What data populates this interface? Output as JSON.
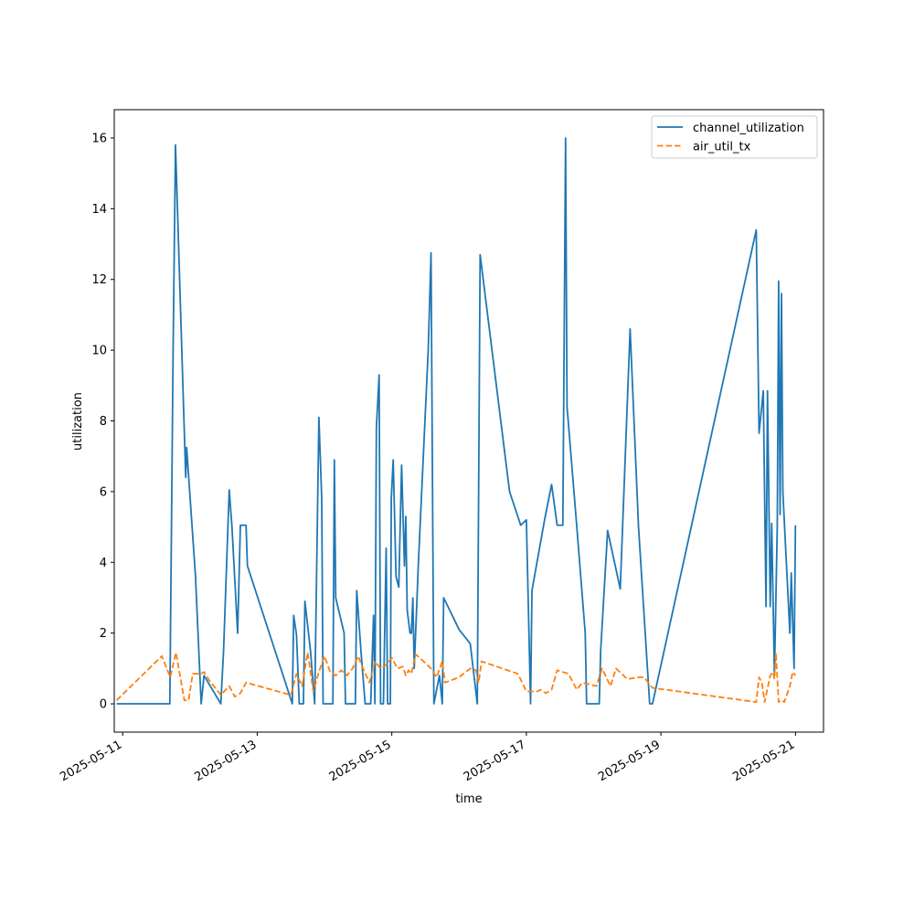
{
  "chart_data": {
    "type": "line",
    "title": "",
    "xlabel": "time",
    "ylabel": "utilization",
    "x_range": [
      "2025-05-10T21:00",
      "2025-05-21T10:00"
    ],
    "ylim": [
      -0.8,
      16.8
    ],
    "grid": false,
    "legend_position": "top-right",
    "x_ticks": [
      {
        "date": "2025-05-11",
        "label": "2025-05-11"
      },
      {
        "date": "2025-05-13",
        "label": "2025-05-13"
      },
      {
        "date": "2025-05-15",
        "label": "2025-05-15"
      },
      {
        "date": "2025-05-17",
        "label": "2025-05-17"
      },
      {
        "date": "2025-05-19",
        "label": "2025-05-19"
      },
      {
        "date": "2025-05-21",
        "label": "2025-05-21"
      }
    ],
    "y_ticks": [
      {
        "value": 0,
        "label": "0"
      },
      {
        "value": 2,
        "label": "2"
      },
      {
        "value": 4,
        "label": "4"
      },
      {
        "value": 6,
        "label": "6"
      },
      {
        "value": 8,
        "label": "8"
      },
      {
        "value": 10,
        "label": "10"
      },
      {
        "value": 12,
        "label": "12"
      },
      {
        "value": 14,
        "label": "14"
      },
      {
        "value": 16,
        "label": "16"
      }
    ],
    "series": [
      {
        "name": "channel_utilization",
        "color": "#1f77b4",
        "style": "solid",
        "points": [
          [
            "2025-05-10T21:50",
            0.0
          ],
          [
            "2025-05-11T16:50",
            0.0
          ],
          [
            "2025-05-11T18:00",
            10.0
          ],
          [
            "2025-05-11T18:50",
            15.8
          ],
          [
            "2025-05-11T22:30",
            6.4
          ],
          [
            "2025-05-11T22:50",
            7.25
          ],
          [
            "2025-05-12T02:00",
            3.6
          ],
          [
            "2025-05-12T04:00",
            0.0
          ],
          [
            "2025-05-12T05:00",
            0.8
          ],
          [
            "2025-05-12T11:00",
            0.0
          ],
          [
            "2025-05-12T12:00",
            1.5
          ],
          [
            "2025-05-12T14:00",
            6.05
          ],
          [
            "2025-05-12T15:00",
            5.0
          ],
          [
            "2025-05-12T17:00",
            2.0
          ],
          [
            "2025-05-12T18:00",
            5.05
          ],
          [
            "2025-05-12T20:00",
            5.05
          ],
          [
            "2025-05-12T20:30",
            3.9
          ],
          [
            "2025-05-13T12:30",
            0.0
          ],
          [
            "2025-05-13T13:00",
            2.5
          ],
          [
            "2025-05-13T14:00",
            1.95
          ],
          [
            "2025-05-13T15:00",
            0.0
          ],
          [
            "2025-05-13T16:30",
            0.0
          ],
          [
            "2025-05-13T17:00",
            2.9
          ],
          [
            "2025-05-13T19:00",
            1.5
          ],
          [
            "2025-05-13T20:30",
            0.0
          ],
          [
            "2025-05-13T22:00",
            8.1
          ],
          [
            "2025-05-13T23:00",
            5.8
          ],
          [
            "2025-05-13T23:30",
            0.0
          ],
          [
            "2025-05-14T03:00",
            0.0
          ],
          [
            "2025-05-14T03:30",
            6.9
          ],
          [
            "2025-05-14T04:00",
            3.0
          ],
          [
            "2025-05-14T07:00",
            2.0
          ],
          [
            "2025-05-14T07:30",
            0.0
          ],
          [
            "2025-05-14T11:00",
            0.0
          ],
          [
            "2025-05-14T11:30",
            3.2
          ],
          [
            "2025-05-14T13:00",
            1.5
          ],
          [
            "2025-05-14T14:30",
            0.0
          ],
          [
            "2025-05-14T16:30",
            0.0
          ],
          [
            "2025-05-14T17:30",
            2.5
          ],
          [
            "2025-05-14T18:00",
            0.0
          ],
          [
            "2025-05-14T18:30",
            7.8
          ],
          [
            "2025-05-14T19:30",
            9.3
          ],
          [
            "2025-05-14T20:00",
            0.0
          ],
          [
            "2025-05-14T21:00",
            0.0
          ],
          [
            "2025-05-14T22:00",
            4.4
          ],
          [
            "2025-05-14T22:30",
            0.0
          ],
          [
            "2025-05-14T23:30",
            0.0
          ],
          [
            "2025-05-14T23:50",
            5.8
          ],
          [
            "2025-05-15T00:30",
            6.9
          ],
          [
            "2025-05-15T01:30",
            3.6
          ],
          [
            "2025-05-15T02:30",
            3.3
          ],
          [
            "2025-05-15T03:30",
            6.75
          ],
          [
            "2025-05-15T04:30",
            3.9
          ],
          [
            "2025-05-15T05:00",
            5.3
          ],
          [
            "2025-05-15T05:30",
            2.65
          ],
          [
            "2025-05-15T06:30",
            2.0
          ],
          [
            "2025-05-15T07:00",
            2.0
          ],
          [
            "2025-05-15T07:30",
            3.0
          ],
          [
            "2025-05-15T08:00",
            1.0
          ],
          [
            "2025-05-15T09:30",
            4.0
          ],
          [
            "2025-05-15T13:00",
            10.0
          ],
          [
            "2025-05-15T14:00",
            12.75
          ],
          [
            "2025-05-15T15:00",
            0.0
          ],
          [
            "2025-05-15T17:00",
            0.8
          ],
          [
            "2025-05-15T18:00",
            0.0
          ],
          [
            "2025-05-15T18:30",
            3.0
          ],
          [
            "2025-05-16T00:00",
            2.1
          ],
          [
            "2025-05-16T04:00",
            1.7
          ],
          [
            "2025-05-16T06:30",
            0.0
          ],
          [
            "2025-05-16T07:30",
            12.7
          ],
          [
            "2025-05-16T18:00",
            6.0
          ],
          [
            "2025-05-16T22:00",
            5.05
          ],
          [
            "2025-05-17T00:00",
            5.2
          ],
          [
            "2025-05-17T01:30",
            0.0
          ],
          [
            "2025-05-17T02:00",
            3.2
          ],
          [
            "2025-05-17T06:30",
            5.2
          ],
          [
            "2025-05-17T09:00",
            6.2
          ],
          [
            "2025-05-17T11:00",
            5.05
          ],
          [
            "2025-05-17T13:00",
            5.05
          ],
          [
            "2025-05-17T14:00",
            16.0
          ],
          [
            "2025-05-17T14:30",
            8.4
          ],
          [
            "2025-05-17T18:00",
            5.0
          ],
          [
            "2025-05-17T21:00",
            2.0
          ],
          [
            "2025-05-17T21:30",
            0.0
          ],
          [
            "2025-05-18T02:00",
            0.0
          ],
          [
            "2025-05-18T02:30",
            1.5
          ],
          [
            "2025-05-18T05:00",
            4.9
          ],
          [
            "2025-05-18T09:30",
            3.25
          ],
          [
            "2025-05-18T13:00",
            10.6
          ],
          [
            "2025-05-18T16:00",
            5.0
          ],
          [
            "2025-05-18T20:00",
            0.0
          ],
          [
            "2025-05-18T21:00",
            0.0
          ],
          [
            "2025-05-20T10:00",
            13.4
          ],
          [
            "2025-05-20T11:00",
            7.65
          ],
          [
            "2025-05-20T12:30",
            8.85
          ],
          [
            "2025-05-20T13:30",
            2.75
          ],
          [
            "2025-05-20T14:00",
            8.85
          ],
          [
            "2025-05-20T15:00",
            2.75
          ],
          [
            "2025-05-20T15:30",
            5.1
          ],
          [
            "2025-05-20T16:30",
            0.8
          ],
          [
            "2025-05-20T17:30",
            5.0
          ],
          [
            "2025-05-20T18:00",
            11.95
          ],
          [
            "2025-05-20T18:30",
            5.35
          ],
          [
            "2025-05-20T19:00",
            11.6
          ],
          [
            "2025-05-20T19:30",
            6.0
          ],
          [
            "2025-05-20T22:00",
            2.0
          ],
          [
            "2025-05-20T22:30",
            3.7
          ],
          [
            "2025-05-20T23:30",
            1.0
          ],
          [
            "2025-05-21T00:00",
            5.05
          ]
        ]
      },
      {
        "name": "air_util_tx",
        "color": "#ff7f0e",
        "style": "dashed",
        "points": [
          [
            "2025-05-10T21:50",
            0.1
          ],
          [
            "2025-05-11T14:00",
            1.35
          ],
          [
            "2025-05-11T17:00",
            0.75
          ],
          [
            "2025-05-11T19:00",
            1.45
          ],
          [
            "2025-05-11T22:00",
            0.1
          ],
          [
            "2025-05-11T23:30",
            0.1
          ],
          [
            "2025-05-12T01:00",
            0.85
          ],
          [
            "2025-05-12T04:00",
            0.85
          ],
          [
            "2025-05-12T05:00",
            0.9
          ],
          [
            "2025-05-12T07:00",
            0.65
          ],
          [
            "2025-05-12T10:00",
            0.35
          ],
          [
            "2025-05-12T11:00",
            0.25
          ],
          [
            "2025-05-12T14:00",
            0.5
          ],
          [
            "2025-05-12T16:00",
            0.2
          ],
          [
            "2025-05-12T18:00",
            0.3
          ],
          [
            "2025-05-12T20:00",
            0.6
          ],
          [
            "2025-05-13T12:00",
            0.25
          ],
          [
            "2025-05-13T14:00",
            0.85
          ],
          [
            "2025-05-13T16:00",
            0.5
          ],
          [
            "2025-05-13T18:00",
            1.45
          ],
          [
            "2025-05-13T20:00",
            0.35
          ],
          [
            "2025-05-13T22:00",
            0.9
          ],
          [
            "2025-05-14T00:00",
            1.35
          ],
          [
            "2025-05-14T02:00",
            0.9
          ],
          [
            "2025-05-14T04:00",
            0.8
          ],
          [
            "2025-05-14T06:00",
            0.95
          ],
          [
            "2025-05-14T08:00",
            0.8
          ],
          [
            "2025-05-14T10:00",
            1.0
          ],
          [
            "2025-05-14T12:00",
            1.35
          ],
          [
            "2025-05-14T14:00",
            0.95
          ],
          [
            "2025-05-14T16:00",
            0.6
          ],
          [
            "2025-05-14T18:00",
            1.2
          ],
          [
            "2025-05-14T20:00",
            1.0
          ],
          [
            "2025-05-14T22:00",
            1.1
          ],
          [
            "2025-05-15T00:00",
            1.3
          ],
          [
            "2025-05-15T02:00",
            1.0
          ],
          [
            "2025-05-15T04:00",
            1.05
          ],
          [
            "2025-05-15T05:00",
            0.8
          ],
          [
            "2025-05-15T06:00",
            0.95
          ],
          [
            "2025-05-15T07:00",
            0.85
          ],
          [
            "2025-05-15T08:30",
            1.4
          ],
          [
            "2025-05-15T10:00",
            1.3
          ],
          [
            "2025-05-15T14:00",
            1.0
          ],
          [
            "2025-05-15T16:00",
            0.75
          ],
          [
            "2025-05-15T18:00",
            1.2
          ],
          [
            "2025-05-15T19:00",
            0.6
          ],
          [
            "2025-05-16T00:00",
            0.75
          ],
          [
            "2025-05-16T04:00",
            1.0
          ],
          [
            "2025-05-16T06:00",
            0.95
          ],
          [
            "2025-05-16T07:00",
            0.6
          ],
          [
            "2025-05-16T08:00",
            1.2
          ],
          [
            "2025-05-16T21:00",
            0.85
          ],
          [
            "2025-05-17T00:00",
            0.35
          ],
          [
            "2025-05-17T04:00",
            0.35
          ],
          [
            "2025-05-17T05:00",
            0.4
          ],
          [
            "2025-05-17T07:00",
            0.3
          ],
          [
            "2025-05-17T09:00",
            0.4
          ],
          [
            "2025-05-17T11:00",
            0.95
          ],
          [
            "2025-05-17T15:00",
            0.85
          ],
          [
            "2025-05-17T18:00",
            0.4
          ],
          [
            "2025-05-17T20:00",
            0.6
          ],
          [
            "2025-05-18T01:00",
            0.5
          ],
          [
            "2025-05-18T03:00",
            1.0
          ],
          [
            "2025-05-18T06:00",
            0.5
          ],
          [
            "2025-05-18T08:00",
            1.0
          ],
          [
            "2025-05-18T12:00",
            0.7
          ],
          [
            "2025-05-18T16:00",
            0.75
          ],
          [
            "2025-05-18T18:00",
            0.75
          ],
          [
            "2025-05-18T21:00",
            0.45
          ],
          [
            "2025-05-20T10:00",
            0.05
          ],
          [
            "2025-05-20T11:00",
            0.75
          ],
          [
            "2025-05-20T12:00",
            0.6
          ],
          [
            "2025-05-20T13:00",
            0.05
          ],
          [
            "2025-05-20T15:00",
            0.8
          ],
          [
            "2025-05-20T16:00",
            0.9
          ],
          [
            "2025-05-20T16:30",
            0.7
          ],
          [
            "2025-05-20T17:00",
            1.45
          ],
          [
            "2025-05-20T18:00",
            0.05
          ],
          [
            "2025-05-20T19:00",
            0.1
          ],
          [
            "2025-05-20T20:00",
            0.05
          ],
          [
            "2025-05-20T22:00",
            0.5
          ],
          [
            "2025-05-20T23:00",
            0.9
          ],
          [
            "2025-05-21T00:00",
            0.8
          ]
        ]
      }
    ]
  }
}
